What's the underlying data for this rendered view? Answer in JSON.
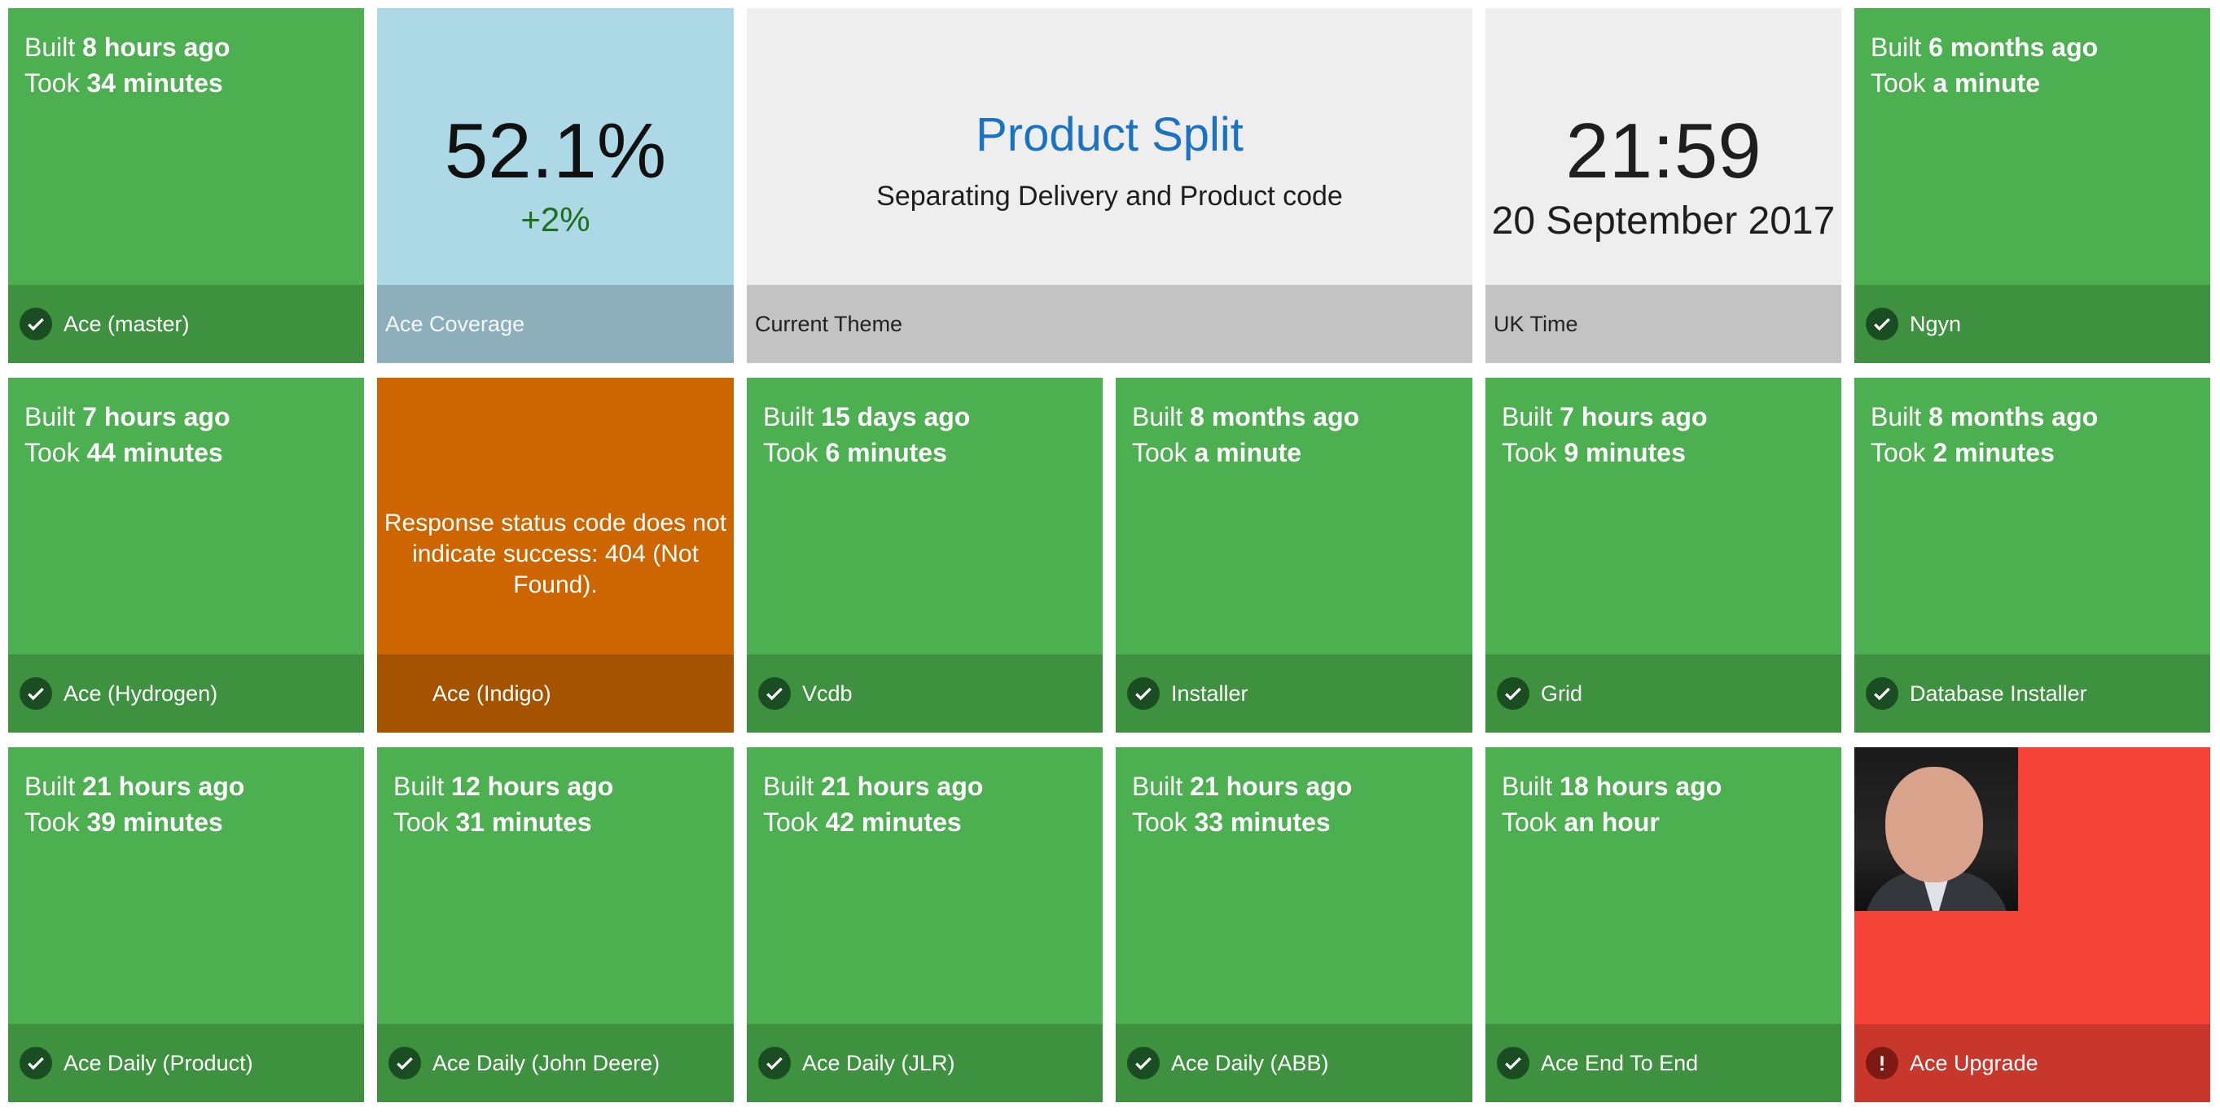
{
  "colors": {
    "success": "#4caf50",
    "success_footer": "#3e913f",
    "failure": "#f44336",
    "error": "#cd6600",
    "coverage": "#add8e6",
    "theme_title": "#1a73c2"
  },
  "build_labels": {
    "built": "Built",
    "took": "Took"
  },
  "tiles": {
    "ace_master": {
      "ago": "8 hours ago",
      "duration": "34 minutes",
      "name": "Ace (master)"
    },
    "coverage": {
      "value": "52.1%",
      "delta": "+2%",
      "name": "Ace Coverage"
    },
    "theme": {
      "title": "Product Split",
      "subtitle": "Separating Delivery and Product code",
      "name": "Current Theme"
    },
    "clock": {
      "time": "21:59",
      "date": "20 September 2017",
      "name": "UK Time"
    },
    "ngyn": {
      "ago": "6 months ago",
      "duration": "a minute",
      "name": "Ngyn"
    },
    "ace_hydrogen": {
      "ago": "7 hours ago",
      "duration": "44 minutes",
      "name": "Ace (Hydrogen)"
    },
    "ace_indigo": {
      "message": "Response status code does not indicate success: 404 (Not Found).",
      "name": "Ace (Indigo)"
    },
    "vcdb": {
      "ago": "15 days ago",
      "duration": "6 minutes",
      "name": "Vcdb"
    },
    "installer": {
      "ago": "8 months ago",
      "duration": "a minute",
      "name": "Installer"
    },
    "grid": {
      "ago": "7 hours ago",
      "duration": "9 minutes",
      "name": "Grid"
    },
    "database_installer": {
      "ago": "8 months ago",
      "duration": "2 minutes",
      "name": "Database Installer"
    },
    "ace_daily_product": {
      "ago": "21 hours ago",
      "duration": "39 minutes",
      "name": "Ace Daily (Product)"
    },
    "ace_daily_john_deere": {
      "ago": "12 hours ago",
      "duration": "31 minutes",
      "name": "Ace Daily (John Deere)"
    },
    "ace_daily_jlr": {
      "ago": "21 hours ago",
      "duration": "42 minutes",
      "name": "Ace Daily (JLR)"
    },
    "ace_daily_abb": {
      "ago": "21 hours ago",
      "duration": "33 minutes",
      "name": "Ace Daily (ABB)"
    },
    "ace_end_to_end": {
      "ago": "18 hours ago",
      "duration": "an hour",
      "name": "Ace End To End"
    },
    "ace_upgrade": {
      "name": "Ace Upgrade"
    }
  }
}
